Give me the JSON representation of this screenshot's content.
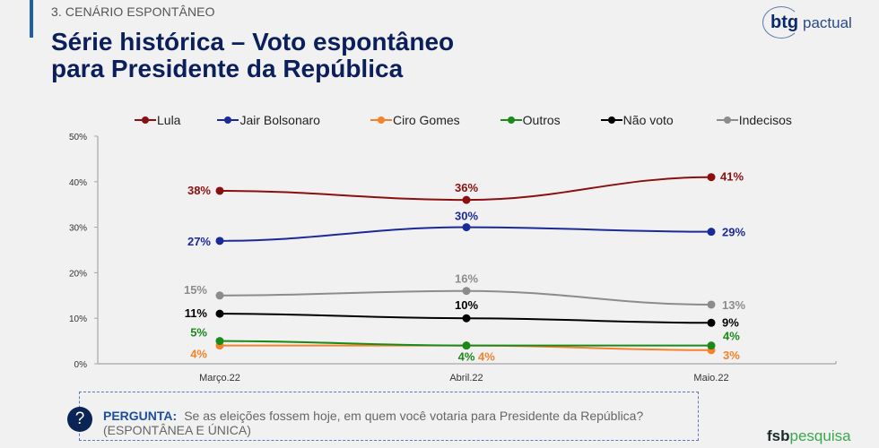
{
  "header": {
    "section": "3. CENÁRIO ESPONTÂNEO",
    "title_line1": "Série histórica – Voto espontâneo",
    "title_line2": "para Presidente da República"
  },
  "logos": {
    "btg_bold": "btg",
    "btg_light": "pactual",
    "fsb_bold": "fsb",
    "fsb_light": "pesquisa"
  },
  "question": {
    "icon": "question-mark-icon",
    "icon_glyph": "?",
    "label": "PERGUNTA:",
    "text": "Se as eleições fossem hoje, em quem você votaria para Presidente da República?",
    "subtext": "(ESPONTÂNEA E ÚNICA)"
  },
  "chart_data": {
    "type": "line",
    "title": "Série histórica – Voto espontâneo para Presidente da República",
    "xlabel": "",
    "ylabel": "",
    "categories": [
      "Março.22",
      "Abril.22",
      "Maio.22"
    ],
    "ylim": [
      0,
      50
    ],
    "yticks": [
      0,
      10,
      20,
      30,
      40,
      50
    ],
    "ytick_labels": [
      "0%",
      "10%",
      "20%",
      "30%",
      "40%",
      "50%"
    ],
    "grid": false,
    "legend_position": "top",
    "series": [
      {
        "name": "Lula",
        "color": "#8b0f0f",
        "values": [
          38,
          36,
          41
        ],
        "labels": [
          "38%",
          "36%",
          "41%"
        ]
      },
      {
        "name": "Jair Bolsonaro",
        "color": "#1a2a9a",
        "values": [
          27,
          30,
          29
        ],
        "labels": [
          "27%",
          "30%",
          "29%"
        ]
      },
      {
        "name": "Ciro Gomes",
        "color": "#f5822a",
        "values": [
          4,
          4,
          3
        ],
        "labels": [
          "4%",
          "4%",
          "3%"
        ]
      },
      {
        "name": "Outros",
        "color": "#1a8a1a",
        "values": [
          5,
          4,
          4
        ],
        "labels": [
          "5%",
          "4%",
          "4%"
        ]
      },
      {
        "name": "Não voto",
        "color": "#000000",
        "values": [
          11,
          10,
          9
        ],
        "labels": [
          "11%",
          "10%",
          "9%"
        ]
      },
      {
        "name": "Indecisos",
        "color": "#8c8c8c",
        "values": [
          15,
          16,
          13
        ],
        "labels": [
          "15%",
          "16%",
          "13%"
        ]
      }
    ]
  }
}
